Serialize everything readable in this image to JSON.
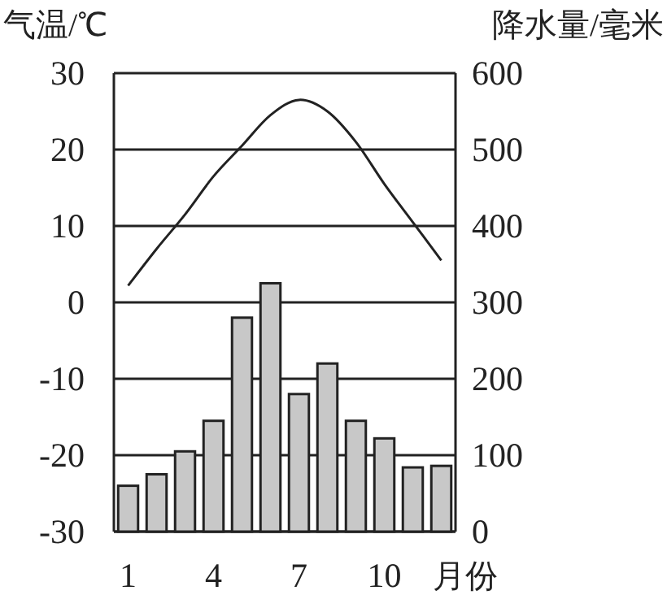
{
  "chart_data": {
    "type": "bar",
    "ylabel": "气温/℃",
    "y2label": "降水量/毫米",
    "xlabel": "月份",
    "categories": [
      "1",
      null,
      null,
      "4",
      null,
      null,
      "7",
      null,
      null,
      "10",
      null,
      null
    ],
    "series": [
      {
        "axis": "y2",
        "color": "#c8c8c8",
        "values": [
          60,
          75,
          105,
          145,
          280,
          325,
          180,
          220,
          145,
          122,
          84,
          86
        ]
      },
      {
        "type": "line",
        "axis": "y",
        "color": "#222222",
        "values": [
          2.2,
          7,
          11.5,
          16.5,
          20.5,
          24.5,
          26.5,
          25,
          21,
          15.5,
          10.5,
          5.5
        ]
      }
    ],
    "ylim": [
      -30,
      30
    ],
    "yticks": [
      -30,
      -20,
      -10,
      0,
      10,
      20,
      30
    ],
    "y2lim": [
      0,
      600
    ],
    "y2ticks": [
      0,
      100,
      200,
      300,
      400,
      500,
      600
    ],
    "grid": "y",
    "marker": "none",
    "line_style": "solid"
  }
}
